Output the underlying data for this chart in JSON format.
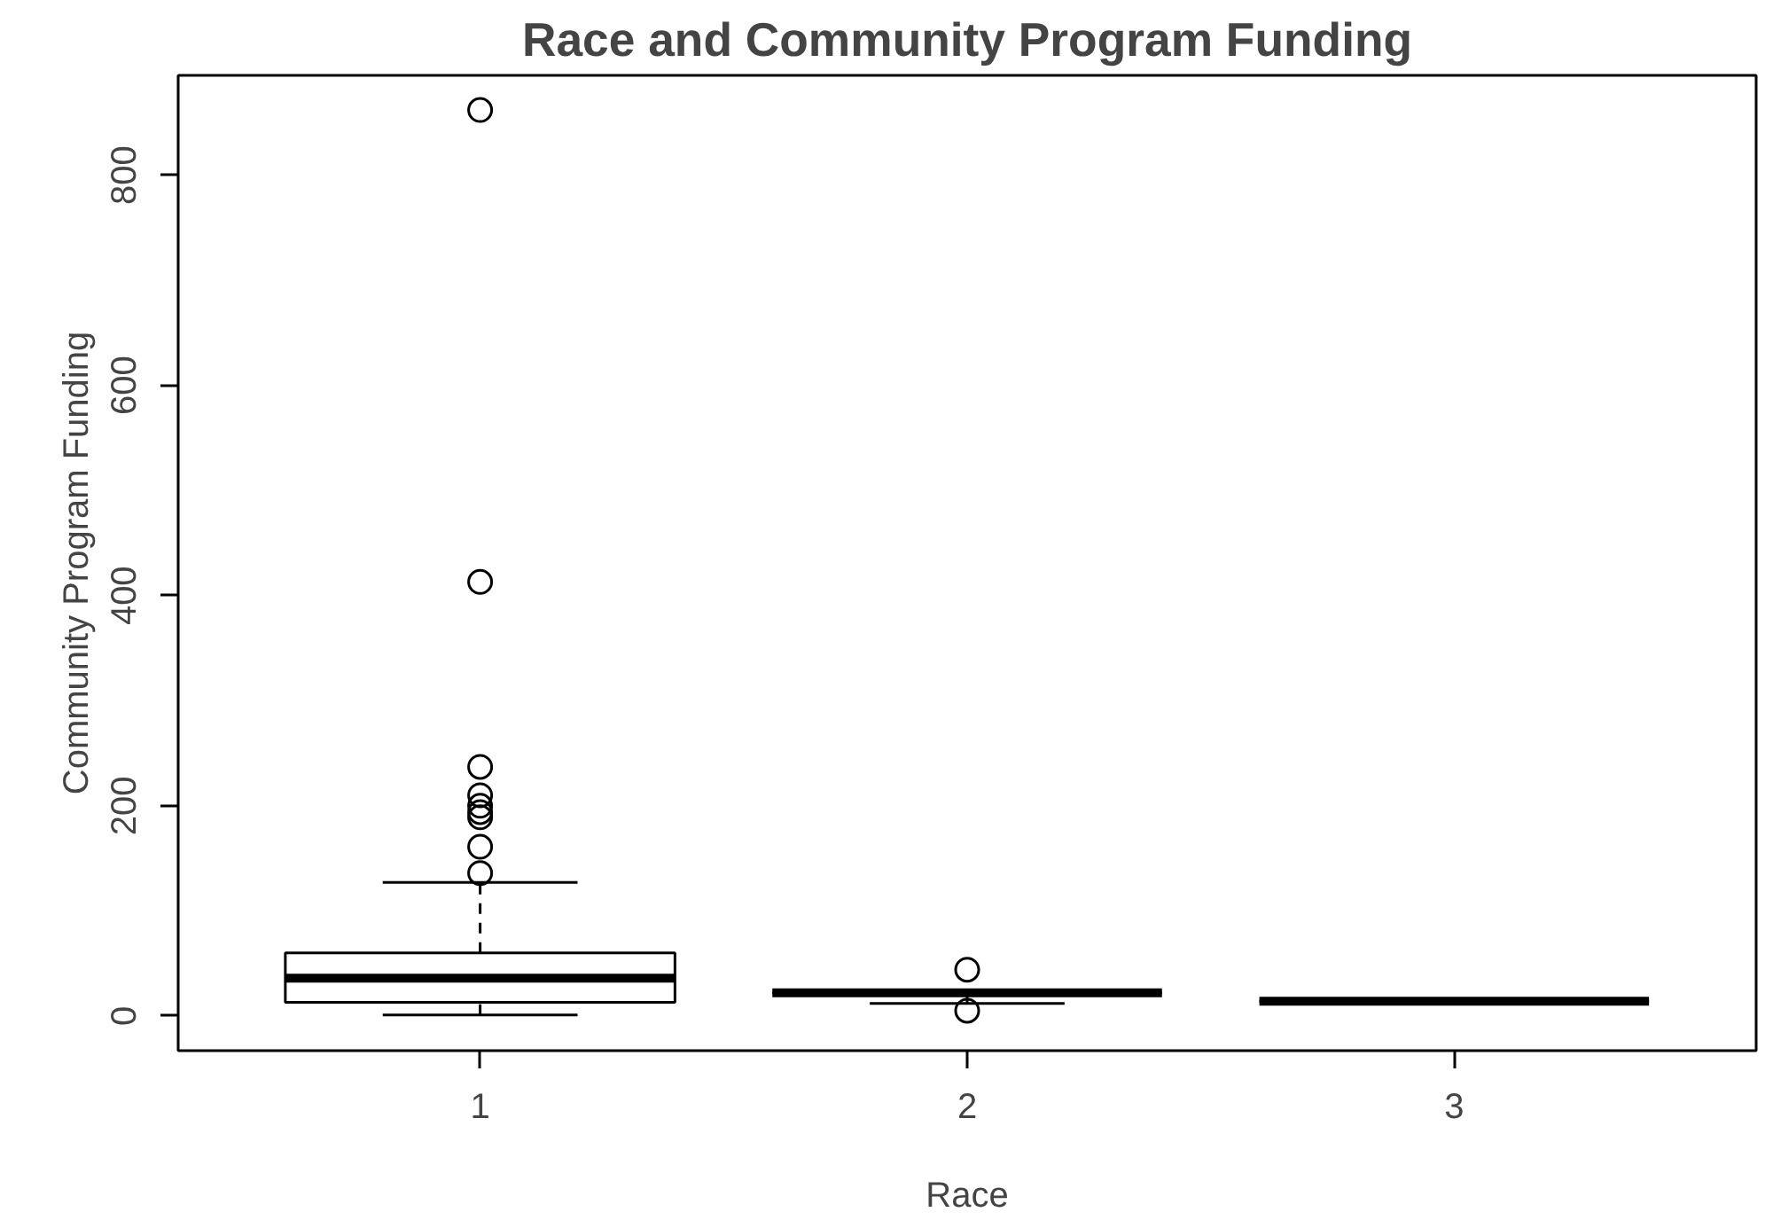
{
  "chart_data": {
    "type": "box",
    "title": "Race and Community Program Funding",
    "xlabel": "Race",
    "ylabel": "Community Program Funding",
    "categories": [
      "1",
      "2",
      "3"
    ],
    "boxes": [
      {
        "low": 1,
        "q1": 13,
        "median": 36,
        "q3": 60,
        "high": 127,
        "outliers": [
          862,
          413,
          237,
          210,
          200,
          194,
          189,
          161,
          136
        ]
      },
      {
        "low": 12,
        "q1": 22,
        "median": 22,
        "q3": 22,
        "high": 22,
        "outliers": [
          44,
          5
        ]
      },
      {
        "low": 14,
        "q1": 14,
        "median": 14,
        "q3": 14,
        "high": 14
      }
    ],
    "ylim": [
      -33,
      895
    ],
    "yticks": [
      0,
      200,
      400,
      600,
      800
    ],
    "grid": false,
    "marker": "circle"
  }
}
